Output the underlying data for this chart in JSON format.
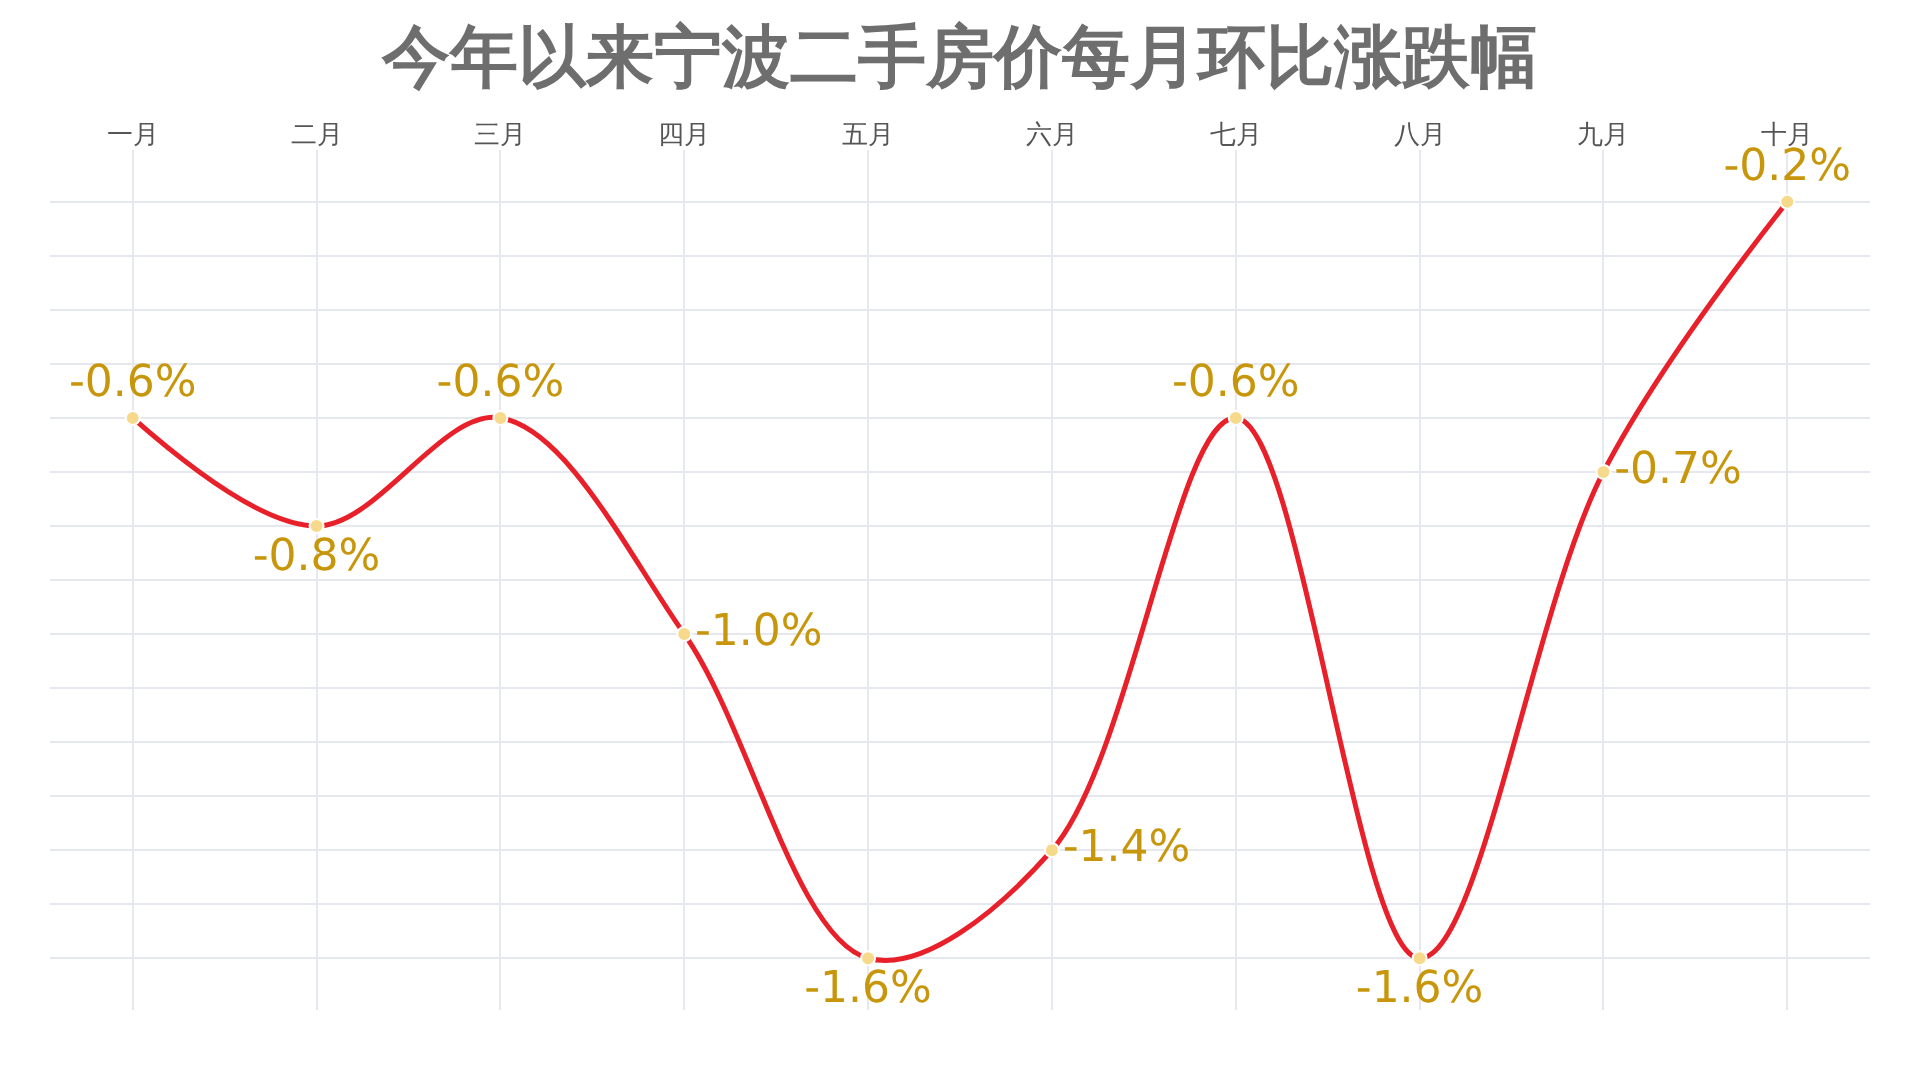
{
  "chart_data": {
    "type": "line",
    "title": "今年以来宁波二手房价每月环比涨跌幅",
    "categories": [
      "一月",
      "二月",
      "三月",
      "四月",
      "五月",
      "六月",
      "七月",
      "八月",
      "九月",
      "十月"
    ],
    "series": [
      {
        "color": "#e8202a",
        "values": [
          -0.6,
          -0.8,
          -0.6,
          -1.0,
          -1.6,
          -1.4,
          -0.6,
          -1.6,
          -0.7,
          -0.2
        ],
        "value_labels": [
          "-0.6%",
          "-0.8%",
          "-0.6%",
          "-1.0%",
          "-1.6%",
          "-1.4%",
          "-0.6%",
          "-1.6%",
          "-0.7%",
          "-0.2%"
        ]
      }
    ],
    "marker": "circle",
    "line_style": "solid",
    "grid": true,
    "tick_labels": "x",
    "legend": false
  }
}
